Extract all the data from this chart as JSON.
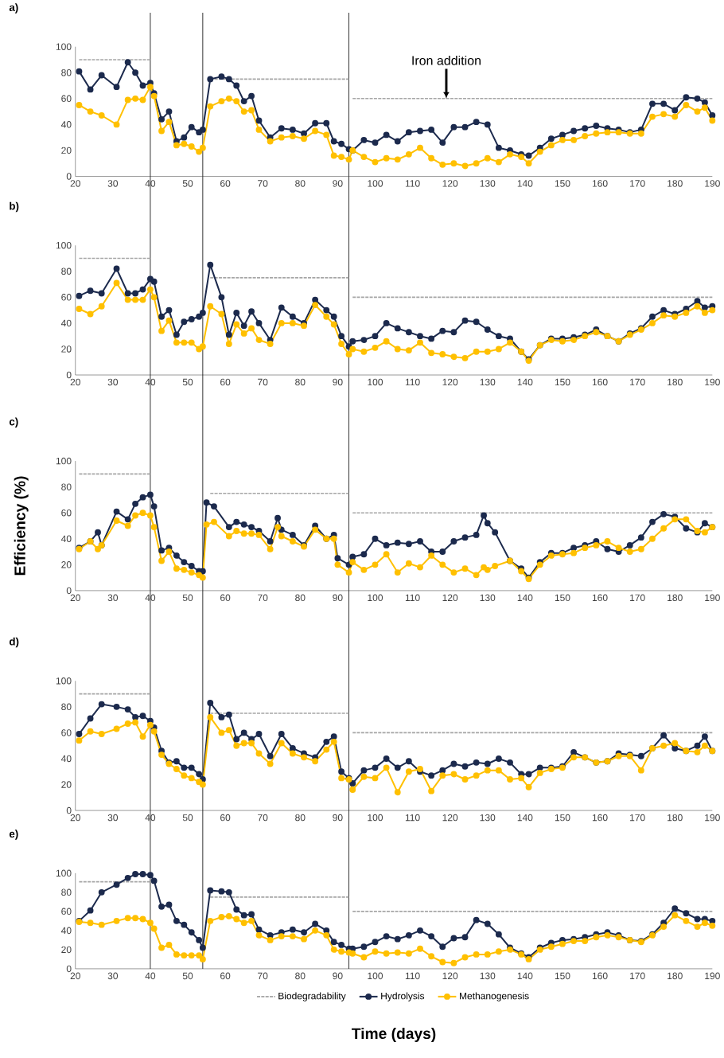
{
  "chart_data": [
    {
      "type": "line",
      "title": "a)",
      "xlim": [
        20,
        190
      ],
      "xticks": [
        20,
        30,
        40,
        50,
        60,
        70,
        80,
        90,
        100,
        110,
        120,
        130,
        140,
        150,
        160,
        170,
        180,
        190
      ],
      "ylim": [
        0,
        100
      ],
      "yticks": [
        0,
        20,
        40,
        60,
        80,
        100
      ],
      "marker": "circle",
      "line_style": "solid",
      "annotations": [
        {
          "text": "Iron addition",
          "x": 119,
          "y": 60
        }
      ],
      "ref_lines": [
        {
          "axis": "x",
          "value": 40,
          "color": "#000000"
        },
        {
          "axis": "x",
          "value": 54,
          "color": "#000000"
        },
        {
          "axis": "x",
          "value": 93,
          "color": "#000000"
        }
      ],
      "x": [
        21,
        24,
        27,
        31,
        34,
        36,
        38,
        40,
        41,
        43,
        45,
        47,
        49,
        51,
        53,
        54,
        56,
        59,
        61,
        63,
        65,
        67,
        69,
        72,
        75,
        78,
        81,
        84,
        87,
        89,
        91,
        93,
        94,
        97,
        100,
        103,
        106,
        109,
        112,
        115,
        118,
        121,
        124,
        127,
        130,
        133,
        136,
        139,
        141,
        144,
        147,
        150,
        153,
        156,
        159,
        162,
        165,
        168,
        171,
        174,
        177,
        180,
        183,
        186,
        188,
        190
      ],
      "series": [
        {
          "color": "#a6a6a6",
          "type": "line",
          "marker": "none",
          "line_style": "dashed",
          "x": [
            21,
            40
          ],
          "values": [
            90,
            90
          ]
        },
        {
          "color": "#a6a6a6",
          "type": "line",
          "marker": "none",
          "line_style": "dashed",
          "x": [
            56,
            93
          ],
          "values": [
            75,
            75
          ]
        },
        {
          "color": "#a6a6a6",
          "type": "line",
          "marker": "none",
          "line_style": "dashed",
          "x": [
            94,
            190
          ],
          "values": [
            60,
            60
          ]
        },
        {
          "color": "#1c2a4d",
          "values": [
            81,
            67,
            78,
            69,
            88,
            80,
            70,
            72,
            64,
            44,
            50,
            27,
            30,
            38,
            34,
            36,
            75,
            77,
            75,
            70,
            58,
            62,
            43,
            30,
            37,
            36,
            33,
            41,
            41,
            27,
            25,
            21,
            20,
            28,
            26,
            32,
            27,
            34,
            35,
            36,
            26,
            38,
            38,
            42,
            40,
            22,
            20,
            17,
            16,
            22,
            29,
            32,
            35,
            37,
            39,
            37,
            36,
            34,
            36,
            56,
            56,
            51,
            61,
            60,
            57,
            47
          ]
        },
        {
          "color": "#ffc000",
          "values": [
            55,
            50,
            47,
            40,
            59,
            60,
            59,
            69,
            62,
            35,
            42,
            24,
            25,
            23,
            19,
            22,
            54,
            58,
            60,
            58,
            50,
            51,
            36,
            27,
            30,
            31,
            29,
            35,
            32,
            16,
            15,
            13,
            20,
            15,
            11,
            14,
            13,
            17,
            22,
            14,
            9,
            10,
            8,
            10,
            14,
            11,
            17,
            15,
            10,
            19,
            24,
            28,
            28,
            31,
            33,
            34,
            34,
            33,
            33,
            46,
            48,
            46,
            55,
            50,
            53,
            43
          ]
        }
      ]
    },
    {
      "type": "line",
      "title": "b)",
      "xlim": [
        20,
        190
      ],
      "xticks": [
        20,
        30,
        40,
        50,
        60,
        70,
        80,
        90,
        100,
        110,
        120,
        130,
        140,
        150,
        160,
        170,
        180,
        190
      ],
      "ylim": [
        0,
        100
      ],
      "yticks": [
        0,
        20,
        40,
        60,
        80,
        100
      ],
      "marker": "circle",
      "line_style": "solid",
      "ref_lines": [
        {
          "axis": "x",
          "value": 40,
          "color": "#000000"
        },
        {
          "axis": "x",
          "value": 54,
          "color": "#000000"
        },
        {
          "axis": "x",
          "value": 93,
          "color": "#000000"
        }
      ],
      "x": [
        21,
        24,
        27,
        31,
        34,
        36,
        38,
        40,
        41,
        43,
        45,
        47,
        49,
        51,
        53,
        54,
        56,
        59,
        61,
        63,
        65,
        67,
        69,
        72,
        75,
        78,
        81,
        84,
        87,
        89,
        91,
        93,
        94,
        97,
        100,
        103,
        106,
        109,
        112,
        115,
        118,
        121,
        124,
        127,
        130,
        133,
        136,
        139,
        141,
        144,
        147,
        150,
        153,
        156,
        159,
        162,
        165,
        168,
        171,
        174,
        177,
        180,
        183,
        186,
        188,
        190
      ],
      "series": [
        {
          "color": "#a6a6a6",
          "type": "line",
          "marker": "none",
          "line_style": "dashed",
          "x": [
            21,
            40
          ],
          "values": [
            90,
            90
          ]
        },
        {
          "color": "#a6a6a6",
          "type": "line",
          "marker": "none",
          "line_style": "dashed",
          "x": [
            56,
            93
          ],
          "values": [
            75,
            75
          ]
        },
        {
          "color": "#a6a6a6",
          "type": "line",
          "marker": "none",
          "line_style": "dashed",
          "x": [
            94,
            190
          ],
          "values": [
            60,
            60
          ]
        },
        {
          "color": "#1c2a4d",
          "values": [
            61,
            65,
            63,
            82,
            63,
            63,
            66,
            74,
            72,
            45,
            50,
            31,
            41,
            43,
            45,
            48,
            85,
            60,
            31,
            48,
            38,
            49,
            40,
            27,
            52,
            45,
            40,
            58,
            50,
            45,
            30,
            22,
            26,
            27,
            30,
            40,
            36,
            33,
            30,
            28,
            34,
            33,
            42,
            41,
            35,
            30,
            28,
            18,
            12,
            23,
            28,
            28,
            29,
            31,
            35,
            30,
            26,
            32,
            36,
            45,
            50,
            47,
            51,
            57,
            52,
            53
          ]
        },
        {
          "color": "#ffc000",
          "values": [
            51,
            47,
            53,
            71,
            58,
            58,
            58,
            66,
            60,
            34,
            42,
            25,
            25,
            25,
            20,
            22,
            53,
            47,
            24,
            39,
            32,
            36,
            27,
            24,
            40,
            40,
            38,
            54,
            45,
            39,
            24,
            16,
            20,
            18,
            21,
            26,
            20,
            19,
            25,
            17,
            16,
            14,
            13,
            18,
            18,
            20,
            25,
            18,
            11,
            23,
            27,
            26,
            27,
            30,
            33,
            30,
            26,
            31,
            35,
            40,
            46,
            45,
            48,
            53,
            48,
            50
          ]
        }
      ]
    },
    {
      "type": "line",
      "title": "c)",
      "ylabel": "Efficiency (%)",
      "xlim": [
        20,
        190
      ],
      "xticks": [
        20,
        30,
        40,
        50,
        60,
        70,
        80,
        90,
        100,
        110,
        120,
        130,
        140,
        150,
        160,
        170,
        180,
        190
      ],
      "ylim": [
        0,
        100
      ],
      "yticks": [
        0,
        20,
        40,
        60,
        80,
        100
      ],
      "marker": "circle",
      "line_style": "solid",
      "ref_lines": [
        {
          "axis": "x",
          "value": 40,
          "color": "#000000"
        },
        {
          "axis": "x",
          "value": 54,
          "color": "#000000"
        },
        {
          "axis": "x",
          "value": 93,
          "color": "#000000"
        }
      ],
      "x": [
        21,
        24,
        26,
        27,
        31,
        34,
        36,
        38,
        40,
        41,
        43,
        45,
        47,
        49,
        51,
        53,
        54,
        55,
        57,
        61,
        63,
        65,
        67,
        69,
        72,
        74,
        75,
        78,
        81,
        84,
        87,
        89,
        90,
        93,
        94,
        97,
        100,
        103,
        106,
        109,
        112,
        115,
        118,
        121,
        124,
        127,
        129,
        130,
        132,
        136,
        139,
        141,
        144,
        147,
        150,
        153,
        156,
        159,
        162,
        165,
        168,
        171,
        174,
        177,
        180,
        183,
        186,
        188,
        190
      ],
      "series": [
        {
          "color": "#a6a6a6",
          "type": "line",
          "marker": "none",
          "line_style": "dashed",
          "x": [
            21,
            40
          ],
          "values": [
            90,
            90
          ]
        },
        {
          "color": "#a6a6a6",
          "type": "line",
          "marker": "none",
          "line_style": "dashed",
          "x": [
            56,
            93
          ],
          "values": [
            75,
            75
          ]
        },
        {
          "color": "#a6a6a6",
          "type": "line",
          "marker": "none",
          "line_style": "dashed",
          "x": [
            94,
            190
          ],
          "values": [
            60,
            60
          ]
        },
        {
          "color": "#1c2a4d",
          "values": [
            33,
            38,
            45,
            35,
            61,
            55,
            67,
            72,
            74,
            65,
            31,
            33,
            27,
            22,
            19,
            15,
            15,
            68,
            65,
            49,
            53,
            51,
            49,
            46,
            38,
            56,
            47,
            43,
            35,
            50,
            40,
            43,
            25,
            20,
            26,
            28,
            40,
            35,
            37,
            36,
            38,
            30,
            30,
            38,
            41,
            43,
            58,
            52,
            45,
            23,
            17,
            10,
            22,
            29,
            29,
            33,
            35,
            38,
            32,
            30,
            35,
            41,
            53,
            59,
            57,
            48,
            45,
            52,
            49
          ]
        },
        {
          "color": "#ffc000",
          "values": [
            32,
            38,
            32,
            35,
            54,
            50,
            58,
            60,
            58,
            49,
            23,
            30,
            17,
            16,
            14,
            12,
            10,
            51,
            53,
            42,
            46,
            44,
            44,
            43,
            32,
            49,
            42,
            38,
            34,
            47,
            40,
            40,
            20,
            14,
            22,
            16,
            20,
            28,
            14,
            21,
            18,
            27,
            20,
            14,
            17,
            12,
            18,
            16,
            19,
            23,
            15,
            9,
            20,
            27,
            28,
            29,
            33,
            35,
            38,
            33,
            30,
            32,
            40,
            48,
            55,
            55,
            46,
            45,
            49
          ]
        }
      ]
    },
    {
      "type": "line",
      "title": "d)",
      "xlim": [
        20,
        190
      ],
      "xticks": [
        20,
        30,
        40,
        50,
        60,
        70,
        80,
        90,
        100,
        110,
        120,
        130,
        140,
        150,
        160,
        170,
        180,
        190
      ],
      "ylim": [
        0,
        100
      ],
      "yticks": [
        0,
        20,
        40,
        60,
        80,
        100
      ],
      "marker": "circle",
      "line_style": "solid",
      "ref_lines": [
        {
          "axis": "x",
          "value": 40,
          "color": "#000000"
        },
        {
          "axis": "x",
          "value": 54,
          "color": "#000000"
        },
        {
          "axis": "x",
          "value": 93,
          "color": "#000000"
        }
      ],
      "x": [
        21,
        24,
        27,
        31,
        34,
        36,
        38,
        40,
        41,
        43,
        45,
        47,
        49,
        51,
        53,
        54,
        56,
        59,
        61,
        63,
        65,
        67,
        69,
        72,
        75,
        78,
        81,
        84,
        87,
        89,
        91,
        93,
        94,
        97,
        100,
        103,
        106,
        109,
        112,
        115,
        118,
        121,
        124,
        127,
        130,
        133,
        136,
        139,
        141,
        144,
        147,
        150,
        153,
        156,
        159,
        162,
        165,
        168,
        171,
        174,
        177,
        180,
        183,
        186,
        188,
        190
      ],
      "series": [
        {
          "color": "#a6a6a6",
          "type": "line",
          "marker": "none",
          "line_style": "dashed",
          "x": [
            21,
            40
          ],
          "values": [
            90,
            90
          ]
        },
        {
          "color": "#a6a6a6",
          "type": "line",
          "marker": "none",
          "line_style": "dashed",
          "x": [
            56,
            93
          ],
          "values": [
            75,
            75
          ]
        },
        {
          "color": "#a6a6a6",
          "type": "line",
          "marker": "none",
          "line_style": "dashed",
          "x": [
            94,
            190
          ],
          "values": [
            60,
            60
          ]
        },
        {
          "color": "#1c2a4d",
          "values": [
            59,
            71,
            82,
            80,
            78,
            72,
            73,
            69,
            64,
            46,
            37,
            38,
            33,
            33,
            28,
            24,
            83,
            72,
            74,
            55,
            60,
            55,
            59,
            42,
            59,
            48,
            44,
            41,
            53,
            57,
            30,
            25,
            21,
            31,
            33,
            40,
            33,
            38,
            30,
            27,
            31,
            36,
            34,
            37,
            36,
            40,
            37,
            28,
            28,
            33,
            33,
            34,
            45,
            41,
            37,
            38,
            44,
            43,
            42,
            48,
            58,
            48,
            46,
            50,
            57,
            46
          ]
        },
        {
          "color": "#ffc000",
          "values": [
            54,
            61,
            59,
            63,
            67,
            68,
            57,
            66,
            61,
            43,
            36,
            32,
            27,
            25,
            22,
            20,
            72,
            60,
            62,
            50,
            52,
            52,
            44,
            36,
            52,
            44,
            41,
            38,
            47,
            53,
            25,
            24,
            16,
            26,
            25,
            33,
            14,
            30,
            32,
            15,
            27,
            28,
            24,
            27,
            31,
            31,
            24,
            25,
            18,
            29,
            32,
            33,
            41,
            41,
            37,
            38,
            42,
            42,
            31,
            48,
            50,
            52,
            46,
            45,
            50,
            46
          ]
        }
      ]
    },
    {
      "type": "line",
      "title": "e)",
      "xlabel": "Time (days)",
      "legend": "bottom",
      "xlim": [
        20,
        190
      ],
      "xticks": [
        20,
        30,
        40,
        50,
        60,
        70,
        80,
        90,
        100,
        110,
        120,
        130,
        140,
        150,
        160,
        170,
        180,
        190
      ],
      "ylim": [
        0,
        100
      ],
      "yticks": [
        0,
        20,
        40,
        60,
        80,
        100
      ],
      "marker": "circle",
      "line_style": "solid",
      "ref_lines": [
        {
          "axis": "x",
          "value": 40,
          "color": "#000000"
        },
        {
          "axis": "x",
          "value": 54,
          "color": "#000000"
        },
        {
          "axis": "x",
          "value": 93,
          "color": "#000000"
        }
      ],
      "x": [
        21,
        24,
        27,
        31,
        34,
        36,
        38,
        40,
        41,
        43,
        45,
        47,
        49,
        51,
        53,
        54,
        56,
        59,
        61,
        63,
        65,
        67,
        69,
        72,
        75,
        78,
        81,
        84,
        87,
        89,
        91,
        93,
        94,
        97,
        100,
        103,
        106,
        109,
        112,
        115,
        118,
        121,
        124,
        127,
        130,
        133,
        136,
        139,
        141,
        144,
        147,
        150,
        153,
        156,
        159,
        162,
        165,
        168,
        171,
        174,
        177,
        180,
        183,
        186,
        188,
        190
      ],
      "series": [
        {
          "name": "Biodegradability",
          "color": "#a6a6a6",
          "type": "line",
          "marker": "none",
          "line_style": "dashed",
          "x": [
            21,
            40
          ],
          "values": [
            91,
            91
          ]
        },
        {
          "color": "#a6a6a6",
          "type": "line",
          "marker": "none",
          "line_style": "dashed",
          "x": [
            56,
            93
          ],
          "values": [
            75,
            75
          ]
        },
        {
          "color": "#a6a6a6",
          "type": "line",
          "marker": "none",
          "line_style": "dashed",
          "x": [
            94,
            190
          ],
          "values": [
            60,
            60
          ]
        },
        {
          "name": "Hydrolysis",
          "color": "#1c2a4d",
          "values": [
            50,
            61,
            80,
            88,
            95,
            99,
            99,
            98,
            92,
            65,
            67,
            50,
            46,
            38,
            30,
            22,
            82,
            81,
            80,
            62,
            56,
            57,
            41,
            35,
            38,
            41,
            38,
            47,
            40,
            28,
            25,
            21,
            21,
            23,
            28,
            34,
            31,
            35,
            40,
            34,
            23,
            32,
            33,
            51,
            47,
            36,
            22,
            16,
            12,
            22,
            27,
            30,
            31,
            33,
            36,
            38,
            35,
            30,
            29,
            36,
            48,
            63,
            58,
            52,
            52,
            50
          ]
        },
        {
          "name": "Methanogenesis",
          "color": "#ffc000",
          "values": [
            49,
            48,
            46,
            50,
            53,
            53,
            52,
            48,
            42,
            22,
            25,
            15,
            14,
            14,
            14,
            10,
            50,
            54,
            55,
            52,
            48,
            50,
            35,
            30,
            34,
            34,
            31,
            40,
            35,
            20,
            18,
            17,
            16,
            12,
            18,
            16,
            17,
            16,
            21,
            13,
            7,
            6,
            12,
            15,
            15,
            18,
            20,
            15,
            10,
            20,
            23,
            26,
            29,
            29,
            33,
            35,
            33,
            30,
            28,
            35,
            44,
            56,
            50,
            44,
            48,
            45
          ]
        }
      ]
    }
  ]
}
